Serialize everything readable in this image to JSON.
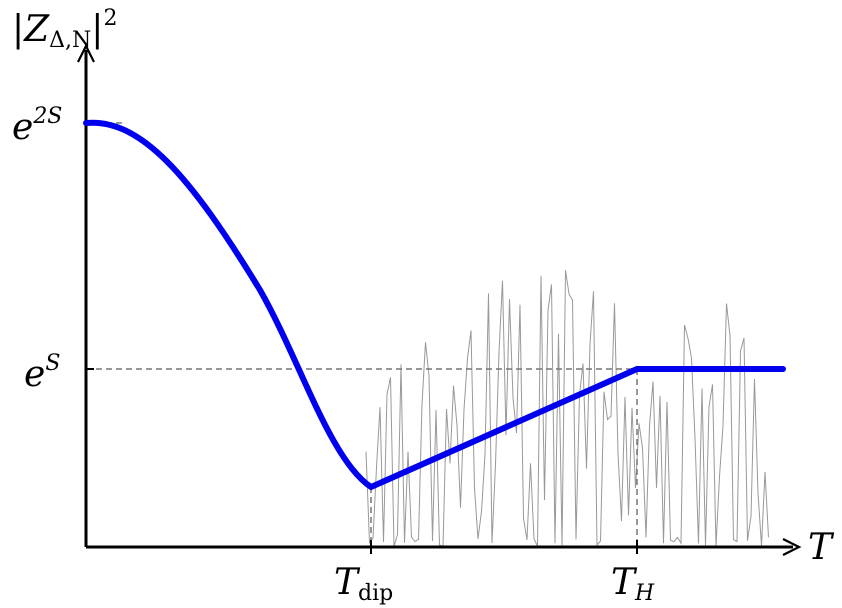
{
  "y_axis_label": {
    "bar_l": "|",
    "base": "Z",
    "sub": "Δ,N",
    "bar_r": "|",
    "sup": "2"
  },
  "x_axis_label": "T",
  "y_ticks": [
    {
      "base": "e",
      "sup": "2S"
    },
    {
      "base": "e",
      "sup": "S"
    }
  ],
  "x_ticks": [
    {
      "base": "T",
      "sub": "dip"
    },
    {
      "base": "T",
      "sub": "H"
    }
  ],
  "colors": {
    "curve": "#0000ee",
    "noise": "#999999",
    "axis": "#000000",
    "guide": "#777777"
  }
}
